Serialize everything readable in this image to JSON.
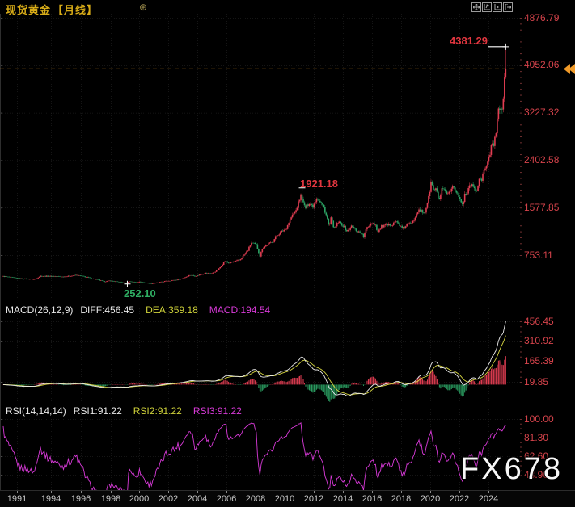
{
  "header": {
    "title": "现货黄金",
    "period": "【月线】",
    "plus_icon": "⊕",
    "toolbar": [
      {
        "name": "pan-crosshair"
      },
      {
        "name": "y-axis-scale"
      },
      {
        "name": "x-axis-scale"
      },
      {
        "name": "exit-restore"
      }
    ]
  },
  "annotations": {
    "all_time_high": "4381.29",
    "peak_2011": "1921.18",
    "low_1999": "252.10"
  },
  "macd_info": {
    "name": "MACD(26,12,9)",
    "diff": "DIFF:456.45",
    "dea": "DEA:359.18",
    "macd": "MACD:194.54"
  },
  "rsi_info": {
    "name": "RSI(14,14,14)",
    "rsi1": "RSI1:91.22",
    "rsi2": "RSI2:91.22",
    "rsi3": "RSI3:91.22"
  },
  "watermark": "FX678",
  "colors": {
    "bull_red": "#e23d52",
    "bear_green": "#2ca465",
    "axis_red": "#d5434b",
    "gold_title": "#d8ac18",
    "orange_line": "#f09a28",
    "diff_white": "#ececec",
    "dea_yellow": "#d6d640",
    "rsi_magenta": "#d93ad9",
    "annotation_red": "#e1363f",
    "annotation_green": "#2fae63"
  },
  "chart_data": [
    {
      "type": "candlestick",
      "title": "现货黄金 月线 (Spot Gold, monthly)",
      "x_start": "1991-01",
      "x_end": "2025-10",
      "y_axis_labels": [
        "4876.79",
        "4052.06",
        "3227.32",
        "2402.58",
        "1577.85",
        "753.11"
      ],
      "x_tick_years": [
        "1991",
        "1994",
        "1996",
        "1998",
        "2000",
        "2002",
        "2004",
        "2006",
        "2008",
        "2010",
        "2012",
        "2014",
        "2016",
        "2018",
        "2020",
        "2022",
        "2024"
      ],
      "current_price": 3988,
      "dashed_line_price": 3988,
      "markers": {
        "all_time_high": {
          "value": 4381.29,
          "date": "2025-10"
        },
        "peak_2011": {
          "value": 1921.18,
          "date": "2011-09"
        },
        "low_1999": {
          "value": 252.1,
          "date": "1999-08"
        }
      },
      "close_anchors": [
        [
          1991.0,
          386
        ],
        [
          1991.5,
          368
        ],
        [
          1992.2,
          344
        ],
        [
          1992.7,
          340
        ],
        [
          1993.2,
          332
        ],
        [
          1993.6,
          390
        ],
        [
          1994.0,
          386
        ],
        [
          1994.6,
          385
        ],
        [
          1995.1,
          376
        ],
        [
          1995.6,
          387
        ],
        [
          1996.1,
          404
        ],
        [
          1996.6,
          382
        ],
        [
          1997.1,
          352
        ],
        [
          1997.6,
          324
        ],
        [
          1998.0,
          292
        ],
        [
          1998.4,
          308
        ],
        [
          1998.8,
          293
        ],
        [
          1999.3,
          279
        ],
        [
          1999.58,
          256
        ],
        [
          1999.75,
          299
        ],
        [
          2000.1,
          283
        ],
        [
          2000.5,
          288
        ],
        [
          2001.0,
          266
        ],
        [
          2001.3,
          259
        ],
        [
          2001.8,
          277
        ],
        [
          2002.3,
          302
        ],
        [
          2002.9,
          318
        ],
        [
          2003.4,
          345
        ],
        [
          2003.95,
          406
        ],
        [
          2004.35,
          390
        ],
        [
          2004.95,
          438
        ],
        [
          2005.5,
          436
        ],
        [
          2005.95,
          513
        ],
        [
          2006.37,
          650
        ],
        [
          2006.6,
          614
        ],
        [
          2006.95,
          636
        ],
        [
          2007.4,
          667
        ],
        [
          2007.95,
          834
        ],
        [
          2008.2,
          965
        ],
        [
          2008.55,
          928
        ],
        [
          2008.8,
          732
        ],
        [
          2008.95,
          870
        ],
        [
          2009.2,
          916
        ],
        [
          2009.7,
          995
        ],
        [
          2009.95,
          1095
        ],
        [
          2010.4,
          1180
        ],
        [
          2010.6,
          1215
        ],
        [
          2010.95,
          1408
        ],
        [
          2011.3,
          1535
        ],
        [
          2011.67,
          1823
        ],
        [
          2011.78,
          1655
        ],
        [
          2011.95,
          1565
        ],
        [
          2012.2,
          1668
        ],
        [
          2012.45,
          1600
        ],
        [
          2012.75,
          1768
        ],
        [
          2012.95,
          1675
        ],
        [
          2013.2,
          1590
        ],
        [
          2013.45,
          1388
        ],
        [
          2013.58,
          1230
        ],
        [
          2013.7,
          1392
        ],
        [
          2013.95,
          1206
        ],
        [
          2014.2,
          1325
        ],
        [
          2014.5,
          1283
        ],
        [
          2014.8,
          1172
        ],
        [
          2014.95,
          1185
        ],
        [
          2015.1,
          1258
        ],
        [
          2015.5,
          1172
        ],
        [
          2015.8,
          1142
        ],
        [
          2015.95,
          1062
        ],
        [
          2016.2,
          1234
        ],
        [
          2016.55,
          1322
        ],
        [
          2016.8,
          1272
        ],
        [
          2016.95,
          1152
        ],
        [
          2017.2,
          1250
        ],
        [
          2017.7,
          1272
        ],
        [
          2017.95,
          1296
        ],
        [
          2018.1,
          1340
        ],
        [
          2018.4,
          1300
        ],
        [
          2018.65,
          1202
        ],
        [
          2018.95,
          1282
        ],
        [
          2019.2,
          1293
        ],
        [
          2019.5,
          1410
        ],
        [
          2019.7,
          1520
        ],
        [
          2019.95,
          1515
        ],
        [
          2020.18,
          1480
        ],
        [
          2020.45,
          1732
        ],
        [
          2020.6,
          1965
        ],
        [
          2020.63,
          2020
        ],
        [
          2020.8,
          1882
        ],
        [
          2020.95,
          1895
        ],
        [
          2021.2,
          1712
        ],
        [
          2021.4,
          1902
        ],
        [
          2021.7,
          1812
        ],
        [
          2021.95,
          1826
        ],
        [
          2022.17,
          1935
        ],
        [
          2022.5,
          1805
        ],
        [
          2022.7,
          1662
        ],
        [
          2022.85,
          1632
        ],
        [
          2022.95,
          1814
        ],
        [
          2023.1,
          1826
        ],
        [
          2023.3,
          1982
        ],
        [
          2023.6,
          1942
        ],
        [
          2023.78,
          1850
        ],
        [
          2023.95,
          2062
        ],
        [
          2024.1,
          2046
        ],
        [
          2024.3,
          2232
        ],
        [
          2024.5,
          2326
        ],
        [
          2024.7,
          2500
        ],
        [
          2024.82,
          2744
        ],
        [
          2024.95,
          2625
        ],
        [
          2025.04,
          2800
        ],
        [
          2025.12,
          2858
        ],
        [
          2025.21,
          3122
        ],
        [
          2025.29,
          3288
        ],
        [
          2025.38,
          3290
        ],
        [
          2025.46,
          3302
        ],
        [
          2025.54,
          3290
        ],
        [
          2025.62,
          3448
        ],
        [
          2025.708,
          3860
        ],
        [
          2025.79,
          3988
        ]
      ],
      "last_candle": {
        "open": 3860,
        "high": 4381.29,
        "low": 3815,
        "close": 3988
      }
    },
    {
      "type": "macd",
      "params": "26,12,9",
      "latest": {
        "DIFF": 456.45,
        "DEA": 359.18,
        "MACD": 194.54
      },
      "y_axis_labels": [
        "456.45",
        "310.92",
        "165.39",
        "19.85"
      ],
      "derived_from": "monthly closes of the candlestick series (EMA12-EMA26, signal EMA9, hist=(DIFF-DEA)*2)",
      "histogram_positive_color": "red",
      "histogram_negative_color": "green"
    },
    {
      "type": "line",
      "name": "RSI",
      "params": "14,14,14",
      "latest": {
        "RSI1": 91.22,
        "RSI2": 91.22,
        "RSI3": 91.22
      },
      "y_axis_labels": [
        "100.00",
        "81.30",
        "62.60",
        "43.90"
      ],
      "derived_from": "Wilder RSI(14) of monthly closes; the three lines coincide",
      "line_color": "magenta"
    }
  ]
}
